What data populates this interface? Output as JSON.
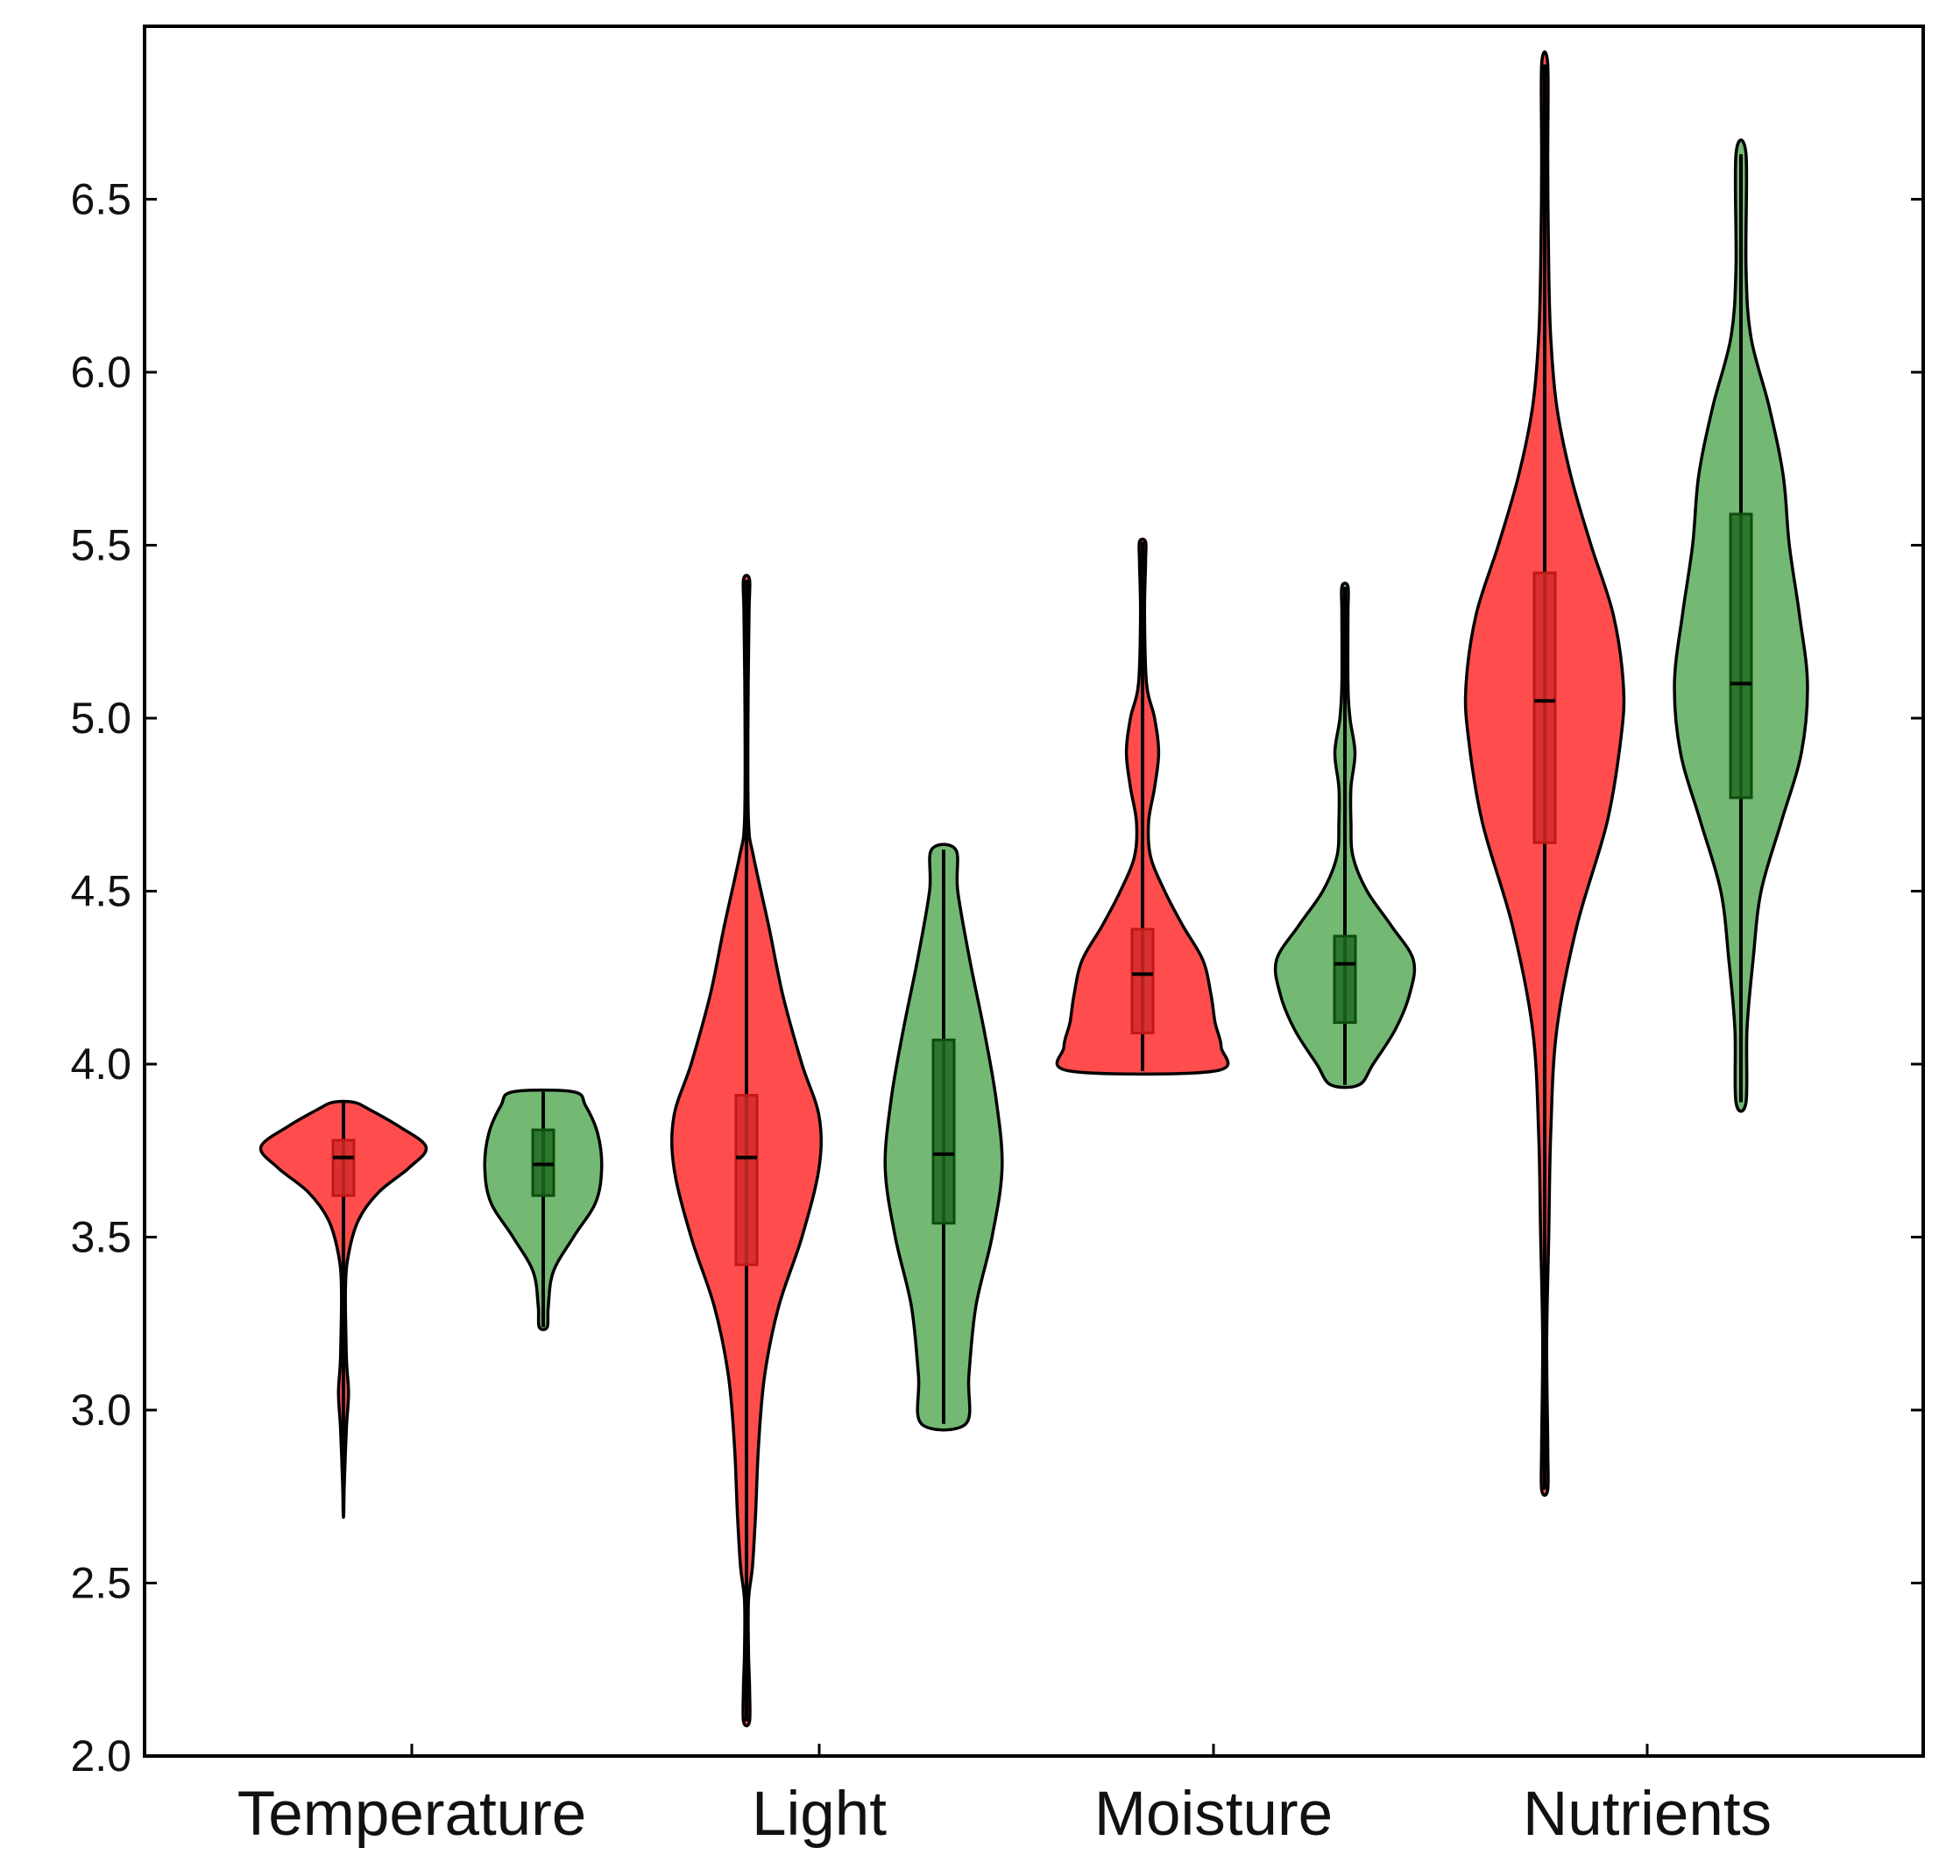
{
  "chart_data": {
    "type": "violin",
    "title": "",
    "xlabel": "",
    "ylabel": "",
    "ylim": [
      2.0,
      7.0
    ],
    "y_ticks": [
      "2.0",
      "2.5",
      "3.0",
      "3.5",
      "4.0",
      "4.5",
      "5.0",
      "5.5",
      "6.0",
      "6.5"
    ],
    "y_tick_values": [
      2.0,
      2.5,
      3.0,
      3.5,
      4.0,
      4.5,
      5.0,
      5.5,
      6.0,
      6.5
    ],
    "categories": [
      "Temperature",
      "Light",
      "Moisture",
      "Nutrients"
    ],
    "colors": {
      "red_fill": "#ff4d4d",
      "red_box": "#d42a2a",
      "green_fill": "#73b973",
      "green_box": "#1e6b1e",
      "outline": "#000000"
    },
    "series": [
      {
        "name": "red",
        "violins": [
          {
            "category": "Temperature",
            "min": 2.7,
            "q1": 3.62,
            "median": 3.73,
            "q3": 3.78,
            "max": 3.89,
            "profile": [
              [
                2.7,
                0.003
              ],
              [
                2.78,
                0.008
              ],
              [
                2.95,
                0.03
              ],
              [
                3.05,
                0.05
              ],
              [
                3.15,
                0.03
              ],
              [
                3.35,
                0.02
              ],
              [
                3.45,
                0.05
              ],
              [
                3.55,
                0.15
              ],
              [
                3.63,
                0.35
              ],
              [
                3.7,
                0.65
              ],
              [
                3.76,
                0.82
              ],
              [
                3.82,
                0.55
              ],
              [
                3.87,
                0.25
              ],
              [
                3.89,
                0.1
              ]
            ]
          },
          {
            "category": "Light",
            "min": 2.1,
            "q1": 3.42,
            "median": 3.73,
            "q3": 3.91,
            "max": 5.4,
            "profile": [
              [
                2.1,
                0.03
              ],
              [
                2.2,
                0.03
              ],
              [
                2.3,
                0.02
              ],
              [
                2.45,
                0.02
              ],
              [
                2.55,
                0.06
              ],
              [
                2.7,
                0.09
              ],
              [
                2.9,
                0.12
              ],
              [
                3.1,
                0.18
              ],
              [
                3.3,
                0.32
              ],
              [
                3.5,
                0.55
              ],
              [
                3.7,
                0.72
              ],
              [
                3.85,
                0.72
              ],
              [
                4.0,
                0.55
              ],
              [
                4.2,
                0.36
              ],
              [
                4.4,
                0.22
              ],
              [
                4.6,
                0.07
              ],
              [
                4.7,
                0.02
              ],
              [
                5.0,
                0.015
              ],
              [
                5.3,
                0.025
              ],
              [
                5.4,
                0.03
              ]
            ]
          },
          {
            "category": "Moisture",
            "min": 3.98,
            "q1": 4.09,
            "median": 4.26,
            "q3": 4.39,
            "max": 5.51,
            "profile": [
              [
                3.98,
                0.72
              ],
              [
                4.05,
                0.78
              ],
              [
                4.12,
                0.72
              ],
              [
                4.2,
                0.68
              ],
              [
                4.3,
                0.6
              ],
              [
                4.4,
                0.4
              ],
              [
                4.5,
                0.22
              ],
              [
                4.6,
                0.08
              ],
              [
                4.7,
                0.06
              ],
              [
                4.8,
                0.12
              ],
              [
                4.9,
                0.16
              ],
              [
                5.0,
                0.12
              ],
              [
                5.1,
                0.04
              ],
              [
                5.3,
                0.02
              ],
              [
                5.45,
                0.03
              ],
              [
                5.51,
                0.03
              ]
            ]
          },
          {
            "category": "Nutrients",
            "min": 2.77,
            "q1": 4.64,
            "median": 5.05,
            "q3": 5.42,
            "max": 6.89,
            "profile": [
              [
                2.77,
                0.03
              ],
              [
                2.9,
                0.03
              ],
              [
                3.2,
                0.02
              ],
              [
                3.5,
                0.04
              ],
              [
                3.8,
                0.06
              ],
              [
                4.1,
                0.12
              ],
              [
                4.4,
                0.32
              ],
              [
                4.7,
                0.62
              ],
              [
                4.95,
                0.76
              ],
              [
                5.1,
                0.78
              ],
              [
                5.3,
                0.68
              ],
              [
                5.5,
                0.46
              ],
              [
                5.7,
                0.26
              ],
              [
                5.9,
                0.12
              ],
              [
                6.1,
                0.06
              ],
              [
                6.3,
                0.04
              ],
              [
                6.6,
                0.03
              ],
              [
                6.89,
                0.03
              ]
            ]
          }
        ]
      },
      {
        "name": "green",
        "violins": [
          {
            "category": "Temperature",
            "min": 3.24,
            "q1": 3.62,
            "median": 3.71,
            "q3": 3.81,
            "max": 3.92,
            "profile": [
              [
                3.24,
                0.04
              ],
              [
                3.3,
                0.05
              ],
              [
                3.4,
                0.1
              ],
              [
                3.5,
                0.3
              ],
              [
                3.6,
                0.52
              ],
              [
                3.7,
                0.58
              ],
              [
                3.8,
                0.54
              ],
              [
                3.88,
                0.42
              ],
              [
                3.92,
                0.3
              ]
            ]
          },
          {
            "category": "Light",
            "min": 2.96,
            "q1": 3.54,
            "median": 3.74,
            "q3": 4.07,
            "max": 4.62,
            "profile": [
              [
                2.96,
                0.22
              ],
              [
                3.1,
                0.25
              ],
              [
                3.3,
                0.32
              ],
              [
                3.5,
                0.48
              ],
              [
                3.7,
                0.58
              ],
              [
                3.9,
                0.52
              ],
              [
                4.1,
                0.4
              ],
              [
                4.3,
                0.26
              ],
              [
                4.5,
                0.14
              ],
              [
                4.62,
                0.12
              ]
            ]
          },
          {
            "category": "Moisture",
            "min": 3.94,
            "q1": 4.12,
            "median": 4.29,
            "q3": 4.37,
            "max": 5.38,
            "profile": [
              [
                3.94,
                0.14
              ],
              [
                4.0,
                0.28
              ],
              [
                4.1,
                0.5
              ],
              [
                4.2,
                0.64
              ],
              [
                4.3,
                0.68
              ],
              [
                4.4,
                0.46
              ],
              [
                4.5,
                0.22
              ],
              [
                4.6,
                0.08
              ],
              [
                4.7,
                0.06
              ],
              [
                4.8,
                0.06
              ],
              [
                4.9,
                0.1
              ],
              [
                5.0,
                0.05
              ],
              [
                5.1,
                0.03
              ],
              [
                5.3,
                0.03
              ],
              [
                5.38,
                0.03
              ]
            ]
          },
          {
            "category": "Nutrients",
            "min": 3.89,
            "q1": 4.77,
            "median": 5.1,
            "q3": 5.59,
            "max": 6.63,
            "profile": [
              [
                3.89,
                0.05
              ],
              [
                4.1,
                0.06
              ],
              [
                4.3,
                0.12
              ],
              [
                4.5,
                0.2
              ],
              [
                4.7,
                0.4
              ],
              [
                4.9,
                0.6
              ],
              [
                5.1,
                0.66
              ],
              [
                5.3,
                0.58
              ],
              [
                5.5,
                0.48
              ],
              [
                5.7,
                0.42
              ],
              [
                5.9,
                0.28
              ],
              [
                6.1,
                0.1
              ],
              [
                6.3,
                0.05
              ],
              [
                6.63,
                0.05
              ]
            ]
          }
        ]
      }
    ]
  }
}
